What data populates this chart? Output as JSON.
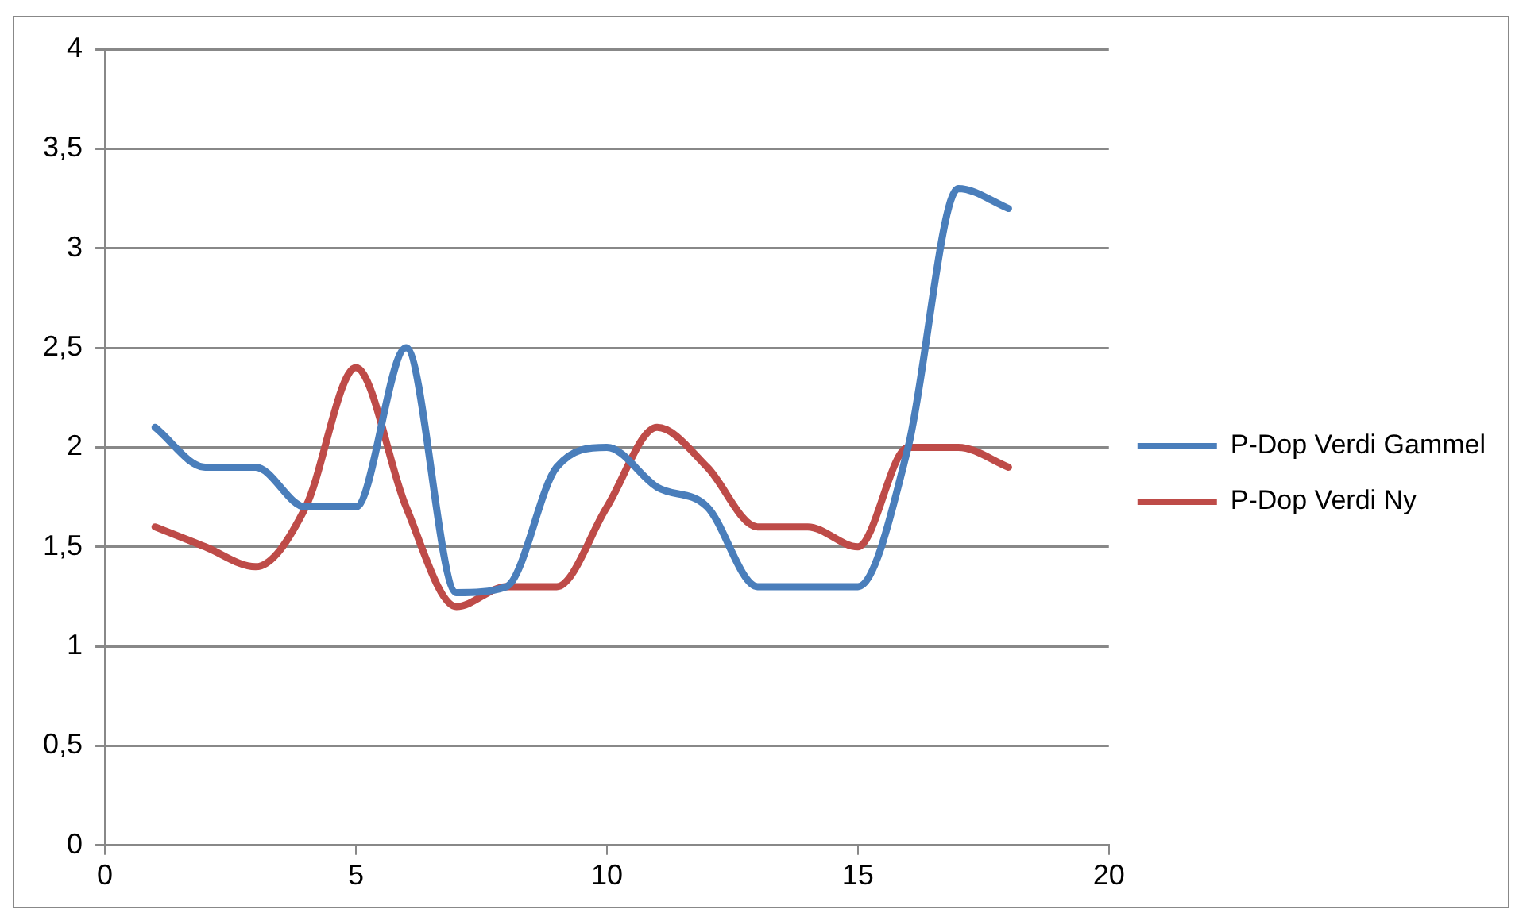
{
  "chart_data": {
    "type": "line",
    "x": [
      1,
      2,
      3,
      4,
      5,
      6,
      7,
      8,
      9,
      10,
      11,
      12,
      13,
      14,
      15,
      16,
      17,
      18
    ],
    "series": [
      {
        "name": "P-Dop Verdi Gammel",
        "color": "#4a7ebb",
        "values": [
          2.1,
          1.9,
          1.9,
          1.7,
          1.7,
          2.5,
          1.27,
          1.3,
          1.9,
          2.0,
          1.8,
          1.7,
          1.3,
          1.3,
          1.3,
          2.0,
          3.3,
          3.2
        ]
      },
      {
        "name": "P-Dop Verdi Ny",
        "color": "#be4b48",
        "values": [
          1.6,
          1.5,
          1.4,
          1.7,
          2.4,
          1.7,
          1.2,
          1.3,
          1.3,
          1.7,
          2.1,
          1.9,
          1.6,
          1.6,
          1.5,
          2.0,
          2.0,
          1.9
        ]
      }
    ],
    "xlim": [
      0,
      20
    ],
    "xticks": [
      0,
      5,
      10,
      15,
      20
    ],
    "ylim": [
      0,
      4
    ],
    "yticks": [
      0,
      {
        "value": 0.5,
        "label": "0,5"
      },
      1,
      {
        "value": 1.5,
        "label": "1,5"
      },
      2,
      {
        "value": 2.5,
        "label": "2,5"
      },
      3,
      {
        "value": 3.5,
        "label": "3,5"
      },
      4
    ],
    "grid": "y",
    "legend": "right",
    "marker": "none",
    "line_style": "solid"
  }
}
